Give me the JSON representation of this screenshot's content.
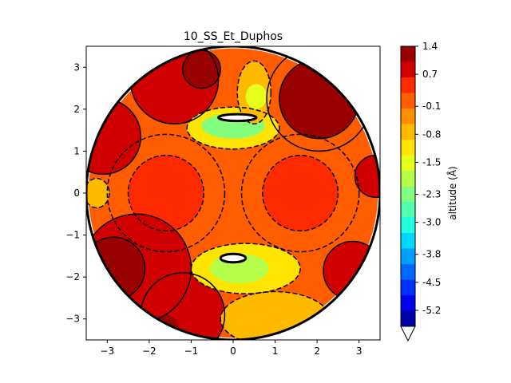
{
  "chart_data": {
    "type": "heatmap",
    "subtype": "filled-contour-map",
    "title": "10_SS_Et_Duphos",
    "xlabel": "",
    "ylabel": "",
    "xlim": [
      -3.5,
      3.5
    ],
    "ylim": [
      -3.5,
      3.5
    ],
    "xticks": [
      -3,
      -2,
      -1,
      0,
      1,
      2,
      3
    ],
    "yticks": [
      -3,
      -2,
      -1,
      0,
      1,
      2,
      3
    ],
    "xtick_labels": [
      "−3",
      "−2",
      "−1",
      "0",
      "1",
      "2",
      "3"
    ],
    "ytick_labels": [
      "−3",
      "−2",
      "−1",
      "0",
      "1",
      "2",
      "3"
    ],
    "grid": false,
    "map_radius": 3.5,
    "colorbar": {
      "label": "altitude (Å)",
      "tick_values": [
        1.4,
        0.7,
        -0.1,
        -0.8,
        -1.5,
        -2.3,
        -3.0,
        -3.8,
        -4.5,
        -5.2
      ],
      "tick_labels": [
        "1.4",
        "0.7",
        "-0.1",
        "-0.8",
        "-1.5",
        "-2.3",
        "-3.0",
        "-3.8",
        "-4.5",
        "-5.2"
      ],
      "level_min": -5.6,
      "level_max": 1.4,
      "extend": "min",
      "colors_top_to_bottom": [
        "#990000",
        "#d00000",
        "#ff2a00",
        "#ff5d00",
        "#ff8e00",
        "#ffba00",
        "#ffe400",
        "#e5ff1a",
        "#b5ff4b",
        "#82ff7e",
        "#51ffaf",
        "#20ffe0",
        "#00d8ff",
        "#00a0ff",
        "#0068ff",
        "#0030ff",
        "#0000f1",
        "#0000a8"
      ]
    },
    "regions": [
      {
        "name": "background",
        "level": -0.1,
        "shape": "circle",
        "cx": 0,
        "cy": 0,
        "r": 3.45
      },
      {
        "name": "left-lobe",
        "level": -0.1,
        "shape": "circle",
        "cx": -1.6,
        "cy": 0.0,
        "r": 1.4
      },
      {
        "name": "right-lobe",
        "level": -0.1,
        "shape": "circle",
        "cx": 1.6,
        "cy": 0.0,
        "r": 1.4
      },
      {
        "name": "left-core",
        "level": 0.3,
        "shape": "circle",
        "cx": -1.6,
        "cy": 0.0,
        "r": 0.9
      },
      {
        "name": "right-core",
        "level": 0.3,
        "shape": "circle",
        "cx": 1.6,
        "cy": 0.0,
        "r": 0.9
      },
      {
        "name": "top-left-ridge",
        "level": 0.7,
        "shape": "circle",
        "cx": -1.4,
        "cy": 2.7,
        "r": 1.05
      },
      {
        "name": "left-ridge",
        "level": 0.7,
        "shape": "circle",
        "cx": -3.1,
        "cy": 1.35,
        "r": 0.9
      },
      {
        "name": "bottom-left-ridge",
        "level": 0.7,
        "shape": "circle",
        "cx": -2.3,
        "cy": -1.8,
        "r": 1.3
      },
      {
        "name": "bottom-ridge",
        "level": 0.7,
        "shape": "circle",
        "cx": -1.2,
        "cy": -2.9,
        "r": 1.0
      },
      {
        "name": "right-ridge",
        "level": 0.7,
        "shape": "circle",
        "cx": 2.85,
        "cy": -1.85,
        "r": 0.7
      },
      {
        "name": "far-right-ridge",
        "level": 0.7,
        "shape": "circle",
        "cx": 3.4,
        "cy": 0.4,
        "r": 0.5
      },
      {
        "name": "top-left-peak",
        "level": 1.05,
        "shape": "circle",
        "cx": -0.75,
        "cy": 2.95,
        "r": 0.45
      },
      {
        "name": "top-right-peak",
        "level": 1.05,
        "shape": "circle",
        "cx": 2.05,
        "cy": 2.25,
        "r": 0.95
      },
      {
        "name": "bottom-left-peak",
        "level": 1.4,
        "shape": "circle",
        "cx": -2.85,
        "cy": -1.8,
        "r": 0.75
      },
      {
        "name": "bottom-peak",
        "level": 1.4,
        "shape": "circle",
        "cx": -1.6,
        "cy": -3.2,
        "r": 0.3
      },
      {
        "name": "top-right-knob",
        "level": 1.4,
        "shape": "circle",
        "cx": 1.95,
        "cy": 2.45,
        "r": 0.15
      },
      {
        "name": "top-valley",
        "level": -1.2,
        "shape": "ellipse",
        "cx": 0.0,
        "cy": 1.55,
        "rx": 1.1,
        "ry": 0.5
      },
      {
        "name": "top-valley-deep",
        "level": -2.3,
        "shape": "ellipse",
        "cx": 0.0,
        "cy": 1.6,
        "rx": 0.75,
        "ry": 0.3
      },
      {
        "name": "top-notch",
        "level": -0.8,
        "shape": "ellipse",
        "cx": 0.5,
        "cy": 2.4,
        "rx": 0.4,
        "ry": 0.75
      },
      {
        "name": "top-notch-deep",
        "level": -1.5,
        "shape": "ellipse",
        "cx": 0.55,
        "cy": 2.3,
        "rx": 0.25,
        "ry": 0.3
      },
      {
        "name": "bottom-valley",
        "level": -1.2,
        "shape": "ellipse",
        "cx": 0.3,
        "cy": -1.8,
        "rx": 1.3,
        "ry": 0.6
      },
      {
        "name": "bottom-valley-deep",
        "level": -2.0,
        "shape": "ellipse",
        "cx": 0.15,
        "cy": -1.8,
        "rx": 0.7,
        "ry": 0.35
      },
      {
        "name": "bottom-right-trough",
        "level": -0.8,
        "shape": "ellipse",
        "cx": 1.0,
        "cy": -3.0,
        "rx": 1.3,
        "ry": 0.65
      },
      {
        "name": "left-edge-dip",
        "level": -0.8,
        "shape": "ellipse",
        "cx": -3.25,
        "cy": 0.0,
        "rx": 0.3,
        "ry": 0.35
      }
    ],
    "holes": [
      {
        "name": "top-hole",
        "cx": 0.1,
        "cy": 1.8,
        "rx": 0.45,
        "ry": 0.08
      },
      {
        "name": "bottom-hole",
        "cx": 0.0,
        "cy": -1.55,
        "rx": 0.3,
        "ry": 0.1
      }
    ],
    "solid_contours": [
      {
        "cx": -1.4,
        "cy": 2.7,
        "r": 1.05
      },
      {
        "cx": -0.75,
        "cy": 2.95,
        "r": 0.45
      },
      {
        "cx": 2.05,
        "cy": 2.25,
        "r": 0.95
      },
      {
        "cx": 2.05,
        "cy": 2.25,
        "r": 1.25
      },
      {
        "cx": -2.3,
        "cy": -1.8,
        "r": 1.3
      },
      {
        "cx": -2.85,
        "cy": -1.8,
        "r": 0.75
      },
      {
        "cx": -1.2,
        "cy": -2.9,
        "r": 1.0
      },
      {
        "cx": 2.85,
        "cy": -1.85,
        "r": 0.7
      },
      {
        "cx": 3.4,
        "cy": 0.4,
        "r": 0.5
      },
      {
        "cx": -3.1,
        "cy": 1.35,
        "r": 0.9
      }
    ],
    "dashed_contours": [
      {
        "cx": -1.6,
        "cy": 0.0,
        "r": 0.9
      },
      {
        "cx": 1.6,
        "cy": 0.0,
        "r": 0.9
      },
      {
        "cx": -1.6,
        "cy": 0.0,
        "r": 1.4
      },
      {
        "cx": 1.6,
        "cy": 0.0,
        "r": 1.4
      },
      {
        "cx": 0.0,
        "cy": 1.55,
        "rx": 1.1,
        "ry": 0.5
      },
      {
        "cx": 0.5,
        "cy": 2.4,
        "rx": 0.4,
        "ry": 0.75
      },
      {
        "cx": 0.3,
        "cy": -1.8,
        "rx": 1.3,
        "ry": 0.6
      },
      {
        "cx": 1.0,
        "cy": -3.0,
        "rx": 1.3,
        "ry": 0.65
      },
      {
        "cx": -3.25,
        "cy": 0.0,
        "rx": 0.3,
        "ry": 0.35
      }
    ]
  }
}
